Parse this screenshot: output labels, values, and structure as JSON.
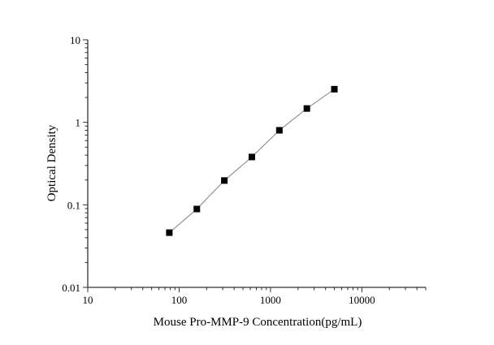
{
  "chart_data": {
    "type": "line",
    "title": "",
    "xlabel": "Mouse Pro-MMP-9 Concentration(pg/mL)",
    "ylabel": "Optical Density",
    "x_scale": "log",
    "y_scale": "log",
    "xlim": [
      10,
      50000
    ],
    "ylim": [
      0.01,
      10
    ],
    "x_ticks": [
      "10",
      "100",
      "1000",
      "10000"
    ],
    "y_ticks": [
      "0.01",
      "0.1",
      "1",
      "10"
    ],
    "grid": false,
    "series": [
      {
        "x": [
          78.125,
          156.25,
          312.5,
          625,
          1250,
          2500,
          5000
        ],
        "y": [
          0.046,
          0.089,
          0.197,
          0.38,
          0.8,
          1.47,
          2.52
        ],
        "marker": "square",
        "marker_color": "#000000",
        "line_color": "#808080"
      }
    ]
  }
}
